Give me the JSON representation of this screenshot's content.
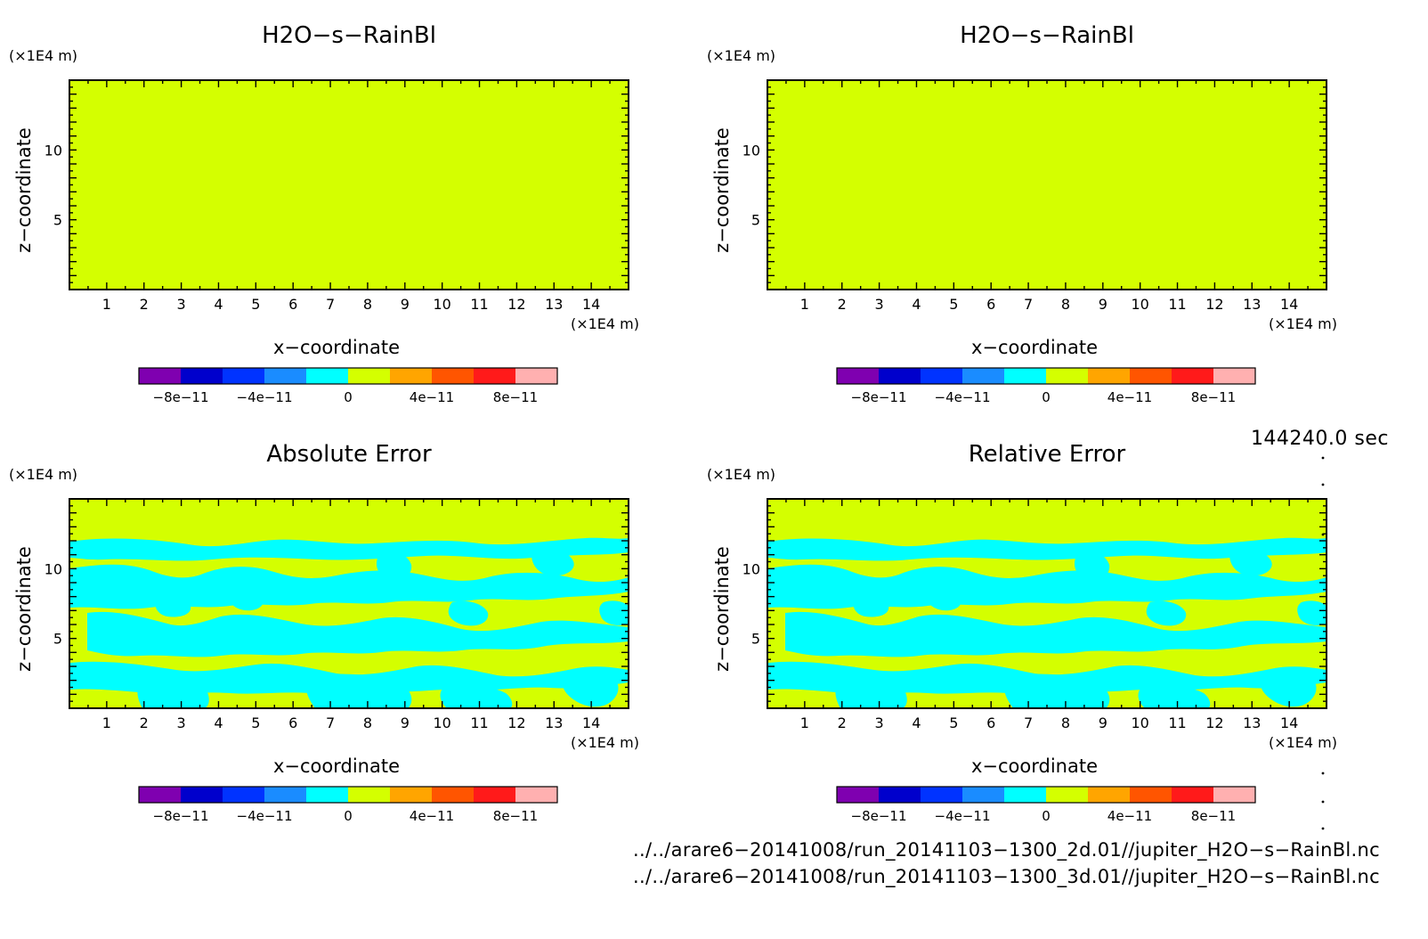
{
  "panels": [
    {
      "title": "H2O−s−RainBl",
      "variant": "uniform"
    },
    {
      "title": "H2O−s−RainBl",
      "variant": "uniform"
    },
    {
      "title": "Absolute Error",
      "variant": "error"
    },
    {
      "title": "Relative Error",
      "variant": "error"
    }
  ],
  "axes": {
    "xlabel": "x−coordinate",
    "ylabel": "z−coordinate",
    "x_unit": "(×1E4 m)",
    "y_unit": "(×1E4 m)",
    "xticks": [
      "1",
      "2",
      "3",
      "4",
      "5",
      "6",
      "7",
      "8",
      "9",
      "10",
      "11",
      "12",
      "13",
      "14"
    ],
    "yticks": [
      "5",
      "10"
    ],
    "xlim": [
      0,
      15
    ],
    "ylim": [
      0,
      15
    ]
  },
  "colorbar": {
    "colors": [
      "#7f00b0",
      "#0000cc",
      "#0033ff",
      "#1a8cff",
      "#00ffff",
      "#d4ff00",
      "#ffa500",
      "#ff5500",
      "#ff1a1a",
      "#ffb0b0"
    ],
    "labels": [
      "−8e−11",
      "−4e−11",
      "0",
      "4e−11",
      "8e−11"
    ]
  },
  "colors": {
    "field": "#d4ff00",
    "error_blob": "#00ffff"
  },
  "time_label": "144240.0 sec",
  "files": [
    "../../arare6−20141008/run_20141103−1300_2d.01//jupiter_H2O−s−RainBl.nc",
    "../../arare6−20141008/run_20141103−1300_3d.01//jupiter_H2O−s−RainBl.nc"
  ]
}
